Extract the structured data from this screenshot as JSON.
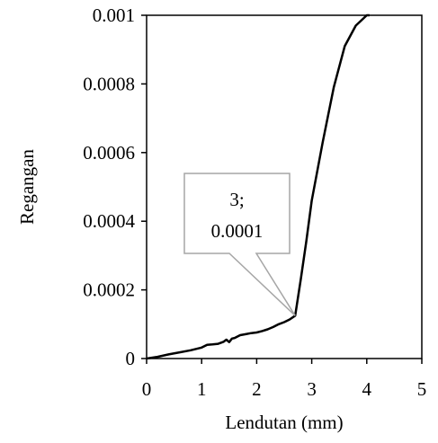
{
  "chart_data": {
    "type": "line",
    "xlabel": "Lendutan (mm)",
    "ylabel": "Regangan",
    "xlim": [
      0,
      5
    ],
    "ylim": [
      0,
      0.001
    ],
    "x_ticks": [
      "0",
      "1",
      "2",
      "3",
      "4",
      "5"
    ],
    "y_ticks": [
      "0",
      "0.0002",
      "0.0004",
      "0.0006",
      "0.0008",
      "0.001"
    ],
    "grid": false,
    "legend": "none",
    "series": [
      {
        "color": "#000000",
        "x": [
          0,
          0.2,
          0.4,
          0.6,
          0.8,
          1.0,
          1.1,
          1.2,
          1.3,
          1.4,
          1.45,
          1.5,
          1.55,
          1.6,
          1.7,
          1.8,
          1.9,
          2.0,
          2.1,
          2.2,
          2.3,
          2.4,
          2.5,
          2.6,
          2.7,
          2.8,
          2.9,
          3.0,
          3.2,
          3.4,
          3.6,
          3.8,
          4.0,
          4.05
        ],
        "y": [
          0,
          5e-06,
          1.2e-05,
          1.8e-05,
          2.4e-05,
          3.2e-05,
          4e-05,
          4.1e-05,
          4.3e-05,
          4.9e-05,
          5.5e-05,
          4.8e-05,
          5.8e-05,
          6e-05,
          6.8e-05,
          7.1e-05,
          7.4e-05,
          7.6e-05,
          8e-05,
          8.5e-05,
          9.2e-05,
          0.0001,
          0.000106,
          0.000114,
          0.000125,
          0.00023,
          0.00034,
          0.00046,
          0.00063,
          0.00079,
          0.00091,
          0.00097,
          0.001,
          0.001
        ]
      }
    ],
    "annotations": [
      {
        "text_line1": "3;",
        "text_line2": "0.0001",
        "x": 2.7,
        "y": 0.000125
      }
    ]
  }
}
